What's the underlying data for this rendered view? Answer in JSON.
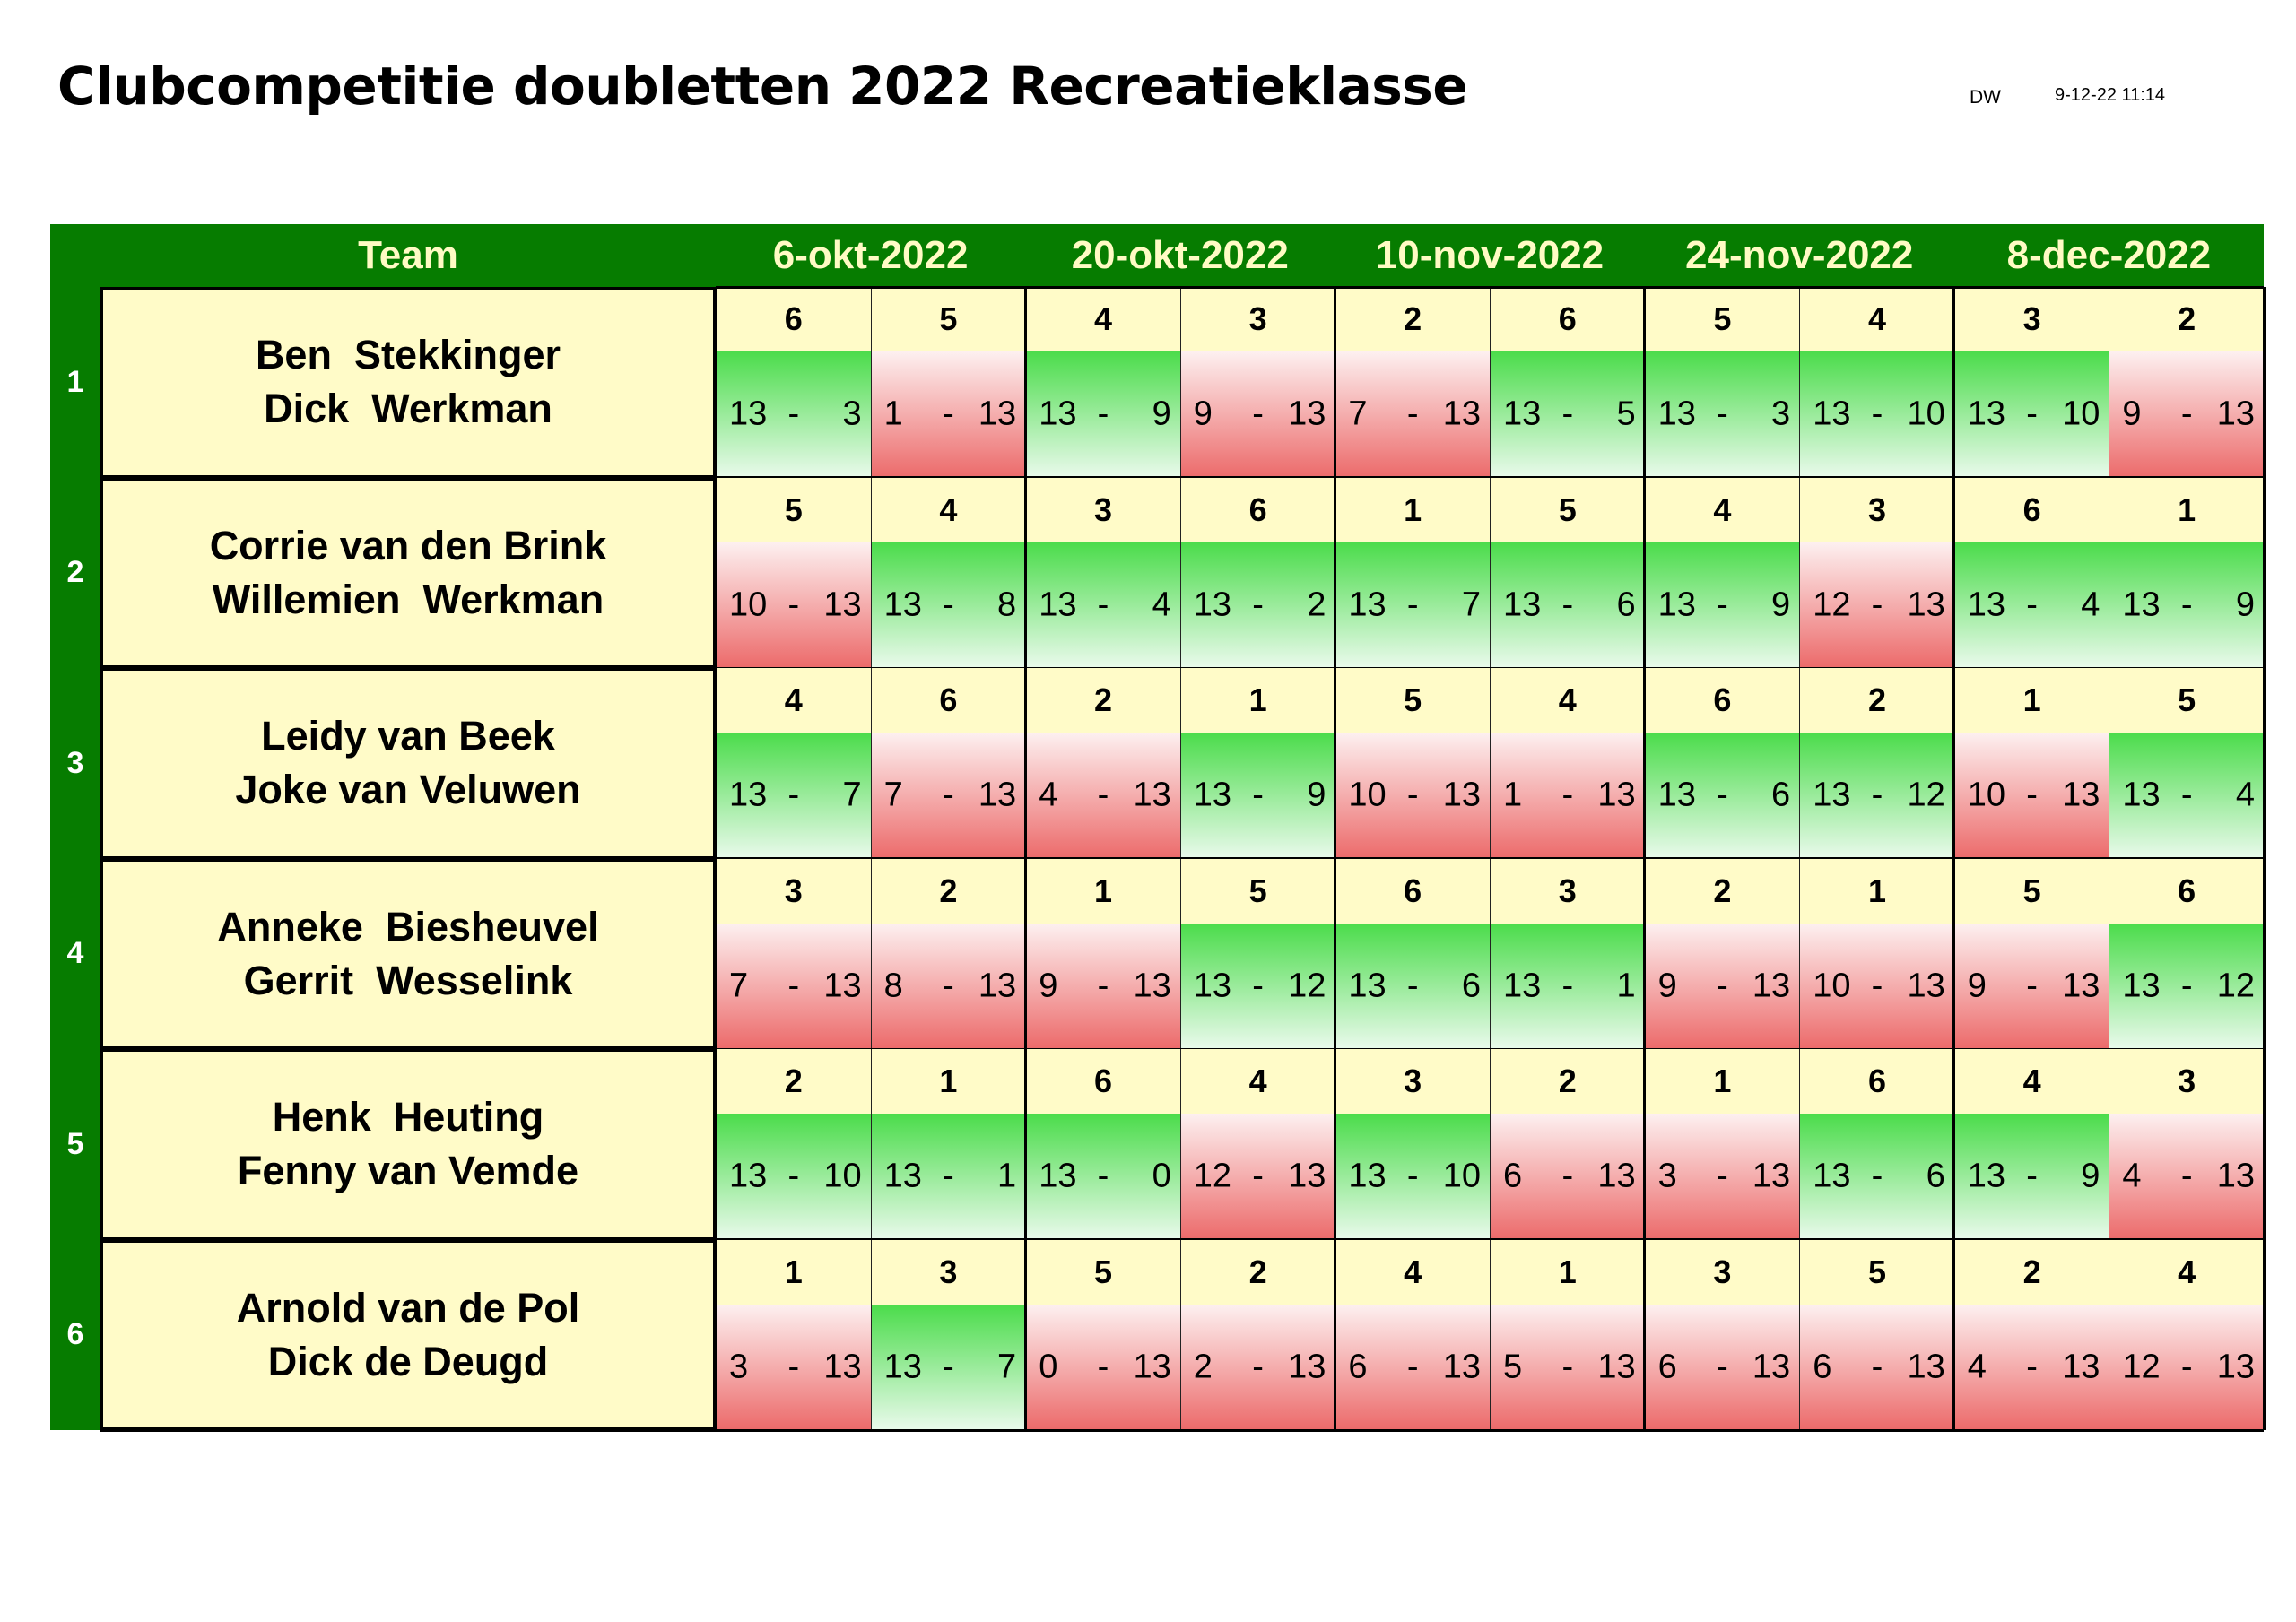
{
  "header": {
    "title": "Clubcompetitie doubletten 2022 Recreatieklasse",
    "author": "DW",
    "timestamp": "9-12-22 11:14"
  },
  "table": {
    "team_header": "Team",
    "dates": [
      "6-okt-2022",
      "20-okt-2022",
      "10-nov-2022",
      "24-nov-2022",
      "8-dec-2022"
    ],
    "colors": {
      "header_bg": "#067c00",
      "header_text": "#fffbc4",
      "cell_bg": "#fffbc8",
      "win": "#4bdc4b",
      "loss": "#ec6a6a"
    },
    "teams": [
      {
        "num": "1",
        "players": [
          "Ben  Stekkinger",
          "Dick  Werkman"
        ],
        "games": [
          {
            "opp": "6",
            "own": "13",
            "other": "3"
          },
          {
            "opp": "5",
            "own": "1",
            "other": "13"
          },
          {
            "opp": "4",
            "own": "13",
            "other": "9"
          },
          {
            "opp": "3",
            "own": "9",
            "other": "13"
          },
          {
            "opp": "2",
            "own": "7",
            "other": "13"
          },
          {
            "opp": "6",
            "own": "13",
            "other": "5"
          },
          {
            "opp": "5",
            "own": "13",
            "other": "3"
          },
          {
            "opp": "4",
            "own": "13",
            "other": "10"
          },
          {
            "opp": "3",
            "own": "13",
            "other": "10"
          },
          {
            "opp": "2",
            "own": "9",
            "other": "13"
          }
        ]
      },
      {
        "num": "2",
        "players": [
          "Corrie van den Brink",
          "Willemien  Werkman"
        ],
        "games": [
          {
            "opp": "5",
            "own": "10",
            "other": "13"
          },
          {
            "opp": "4",
            "own": "13",
            "other": "8"
          },
          {
            "opp": "3",
            "own": "13",
            "other": "4"
          },
          {
            "opp": "6",
            "own": "13",
            "other": "2"
          },
          {
            "opp": "1",
            "own": "13",
            "other": "7"
          },
          {
            "opp": "5",
            "own": "13",
            "other": "6"
          },
          {
            "opp": "4",
            "own": "13",
            "other": "9"
          },
          {
            "opp": "3",
            "own": "12",
            "other": "13"
          },
          {
            "opp": "6",
            "own": "13",
            "other": "4"
          },
          {
            "opp": "1",
            "own": "13",
            "other": "9"
          }
        ]
      },
      {
        "num": "3",
        "players": [
          "Leidy van Beek",
          "Joke van Veluwen"
        ],
        "games": [
          {
            "opp": "4",
            "own": "13",
            "other": "7"
          },
          {
            "opp": "6",
            "own": "7",
            "other": "13"
          },
          {
            "opp": "2",
            "own": "4",
            "other": "13"
          },
          {
            "opp": "1",
            "own": "13",
            "other": "9"
          },
          {
            "opp": "5",
            "own": "10",
            "other": "13"
          },
          {
            "opp": "4",
            "own": "1",
            "other": "13"
          },
          {
            "opp": "6",
            "own": "13",
            "other": "6"
          },
          {
            "opp": "2",
            "own": "13",
            "other": "12"
          },
          {
            "opp": "1",
            "own": "10",
            "other": "13"
          },
          {
            "opp": "5",
            "own": "13",
            "other": "4"
          }
        ]
      },
      {
        "num": "4",
        "players": [
          "Anneke  Biesheuvel",
          "Gerrit  Wesselink"
        ],
        "games": [
          {
            "opp": "3",
            "own": "7",
            "other": "13"
          },
          {
            "opp": "2",
            "own": "8",
            "other": "13"
          },
          {
            "opp": "1",
            "own": "9",
            "other": "13"
          },
          {
            "opp": "5",
            "own": "13",
            "other": "12"
          },
          {
            "opp": "6",
            "own": "13",
            "other": "6"
          },
          {
            "opp": "3",
            "own": "13",
            "other": "1"
          },
          {
            "opp": "2",
            "own": "9",
            "other": "13"
          },
          {
            "opp": "1",
            "own": "10",
            "other": "13"
          },
          {
            "opp": "5",
            "own": "9",
            "other": "13"
          },
          {
            "opp": "6",
            "own": "13",
            "other": "12"
          }
        ]
      },
      {
        "num": "5",
        "players": [
          "Henk  Heuting",
          "Fenny van Vemde"
        ],
        "games": [
          {
            "opp": "2",
            "own": "13",
            "other": "10"
          },
          {
            "opp": "1",
            "own": "13",
            "other": "1"
          },
          {
            "opp": "6",
            "own": "13",
            "other": "0"
          },
          {
            "opp": "4",
            "own": "12",
            "other": "13"
          },
          {
            "opp": "3",
            "own": "13",
            "other": "10"
          },
          {
            "opp": "2",
            "own": "6",
            "other": "13"
          },
          {
            "opp": "1",
            "own": "3",
            "other": "13"
          },
          {
            "opp": "6",
            "own": "13",
            "other": "6"
          },
          {
            "opp": "4",
            "own": "13",
            "other": "9"
          },
          {
            "opp": "3",
            "own": "4",
            "other": "13"
          }
        ]
      },
      {
        "num": "6",
        "players": [
          "Arnold van de Pol",
          "Dick de Deugd"
        ],
        "games": [
          {
            "opp": "1",
            "own": "3",
            "other": "13"
          },
          {
            "opp": "3",
            "own": "13",
            "other": "7"
          },
          {
            "opp": "5",
            "own": "0",
            "other": "13"
          },
          {
            "opp": "2",
            "own": "2",
            "other": "13"
          },
          {
            "opp": "4",
            "own": "6",
            "other": "13"
          },
          {
            "opp": "1",
            "own": "5",
            "other": "13"
          },
          {
            "opp": "3",
            "own": "6",
            "other": "13"
          },
          {
            "opp": "5",
            "own": "6",
            "other": "13"
          },
          {
            "opp": "2",
            "own": "4",
            "other": "13"
          },
          {
            "opp": "4",
            "own": "12",
            "other": "13"
          }
        ]
      }
    ]
  }
}
